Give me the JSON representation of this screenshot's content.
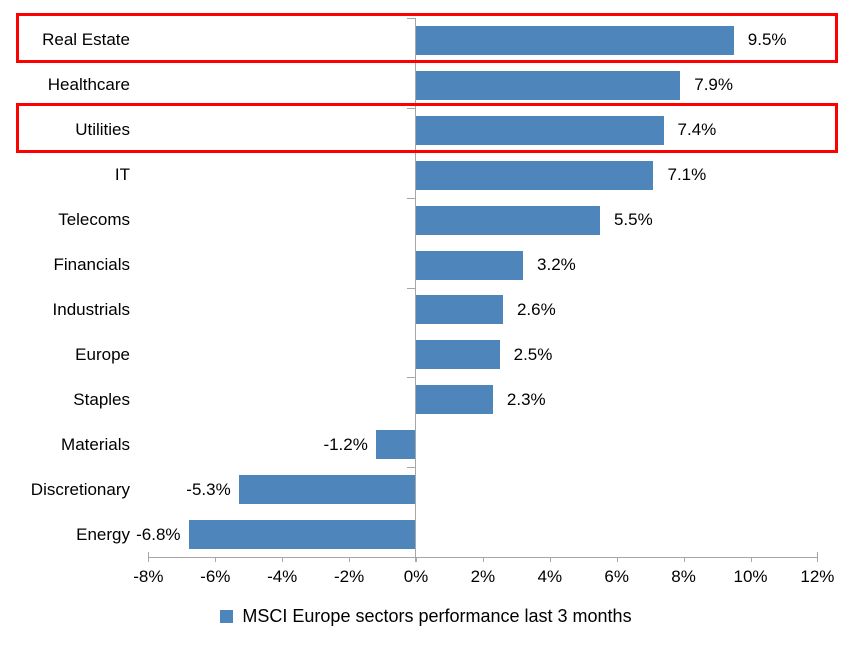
{
  "chart_data": {
    "type": "bar",
    "orientation": "horizontal",
    "categories": [
      "Real Estate",
      "Healthcare",
      "Utilities",
      "IT",
      "Telecoms",
      "Financials",
      "Industrials",
      "Europe",
      "Staples",
      "Materials",
      "Discretionary",
      "Energy"
    ],
    "values": [
      9.5,
      7.9,
      7.4,
      7.1,
      5.5,
      3.2,
      2.6,
      2.5,
      2.3,
      -1.2,
      -5.3,
      -6.8
    ],
    "data_labels": [
      "9.5%",
      "7.9%",
      "7.4%",
      "7.1%",
      "5.5%",
      "3.2%",
      "2.6%",
      "2.5%",
      "2.3%",
      "-1.2%",
      "-5.3%",
      "-6.8%"
    ],
    "x_ticks": [
      "-8%",
      "-6%",
      "-4%",
      "-2%",
      "0%",
      "2%",
      "4%",
      "6%",
      "8%",
      "10%",
      "12%"
    ],
    "x_tick_values": [
      -8,
      -6,
      -4,
      -2,
      0,
      2,
      4,
      6,
      8,
      10,
      12
    ],
    "xlim": [
      -8,
      12
    ],
    "title": "",
    "xlabel": "",
    "ylabel": "",
    "grid": false,
    "legend_position": "bottom",
    "legend": [
      {
        "label": "MSCI Europe sectors performance last 3 months",
        "color": "#4E86BC"
      }
    ],
    "bar_color": "#4E86BC",
    "axis_color": "#A6A6A6",
    "highlight_color": "#FF0000",
    "highlighted_categories": [
      "Real Estate",
      "Utilities"
    ]
  }
}
